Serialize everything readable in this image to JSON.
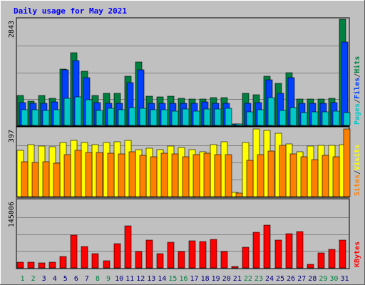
{
  "chart_data": {
    "type": "bar",
    "title": "Daily usage for May 2021",
    "categories": [
      "1",
      "2",
      "3",
      "4",
      "5",
      "6",
      "7",
      "8",
      "9",
      "10",
      "11",
      "12",
      "13",
      "14",
      "15",
      "16",
      "17",
      "18",
      "19",
      "20",
      "21",
      "22",
      "23",
      "24",
      "25",
      "26",
      "27",
      "28",
      "29",
      "30",
      "31"
    ],
    "weekend_days": [
      "1",
      "2",
      "8",
      "9",
      "15",
      "16",
      "22",
      "23",
      "29",
      "30"
    ],
    "panels": [
      {
        "id": "hits",
        "ymax": 2843,
        "ymax_label": "2843",
        "legend": [
          {
            "text": "Pages",
            "color": "#00c8c8"
          },
          {
            "text": "/",
            "color": "#444444"
          },
          {
            "text": "Files",
            "color": "#0040ff"
          },
          {
            "text": "/",
            "color": "#444444"
          },
          {
            "text": "Hits",
            "color": "#008040"
          }
        ],
        "series": [
          {
            "name": "Hits",
            "color": "#008040",
            "values": [
              795,
              646,
              795,
              717,
              1515,
              1944,
              1455,
              795,
              854,
              854,
              1309,
              1698,
              785,
              766,
              785,
              717,
              707,
              707,
              737,
              746,
              30,
              854,
              814,
              1311,
              1133,
              1418,
              697,
              697,
              697,
              727,
              2843
            ]
          },
          {
            "name": "Files",
            "color": "#0040ff",
            "values": [
              612,
              599,
              599,
              625,
              1497,
              1730,
              1274,
              612,
              597,
              599,
              1148,
              1486,
              599,
              583,
              583,
              599,
              599,
              624,
              599,
              599,
              24,
              599,
              612,
              1229,
              850,
              1273,
              599,
              583,
              583,
              612,
              2235
            ]
          },
          {
            "name": "Pages",
            "color": "#00c8c8",
            "values": [
              418,
              422,
              408,
              420,
              718,
              766,
              692,
              403,
              455,
              416,
              476,
              466,
              418,
              418,
              389,
              442,
              387,
              432,
              431,
              460,
              12,
              364,
              422,
              745,
              394,
              482,
              349,
              360,
              364,
              390,
              341
            ]
          }
        ]
      },
      {
        "id": "visits",
        "ymax": 397,
        "ymax_label": "397",
        "legend": [
          {
            "text": "Sites",
            "color": "#ff8000"
          },
          {
            "text": "/",
            "color": "#444444"
          },
          {
            "text": "Visits",
            "color": "#ffff00"
          }
        ],
        "series": [
          {
            "name": "Visits",
            "color": "#ffff00",
            "values": [
              270,
              300,
              292,
              289,
              315,
              328,
              314,
              300,
              314,
              317,
              328,
              275,
              283,
              271,
              292,
              287,
              275,
              262,
              300,
              319,
              23,
              315,
              393,
              386,
              368,
              307,
              260,
              294,
              299,
              299,
              300
            ]
          },
          {
            "name": "Sites",
            "color": "#ff8000",
            "values": [
              201,
              200,
              204,
              195,
              246,
              268,
              256,
              258,
              254,
              249,
              260,
              239,
              231,
              251,
              248,
              233,
              243,
              254,
              243,
              244,
              20,
              209,
              246,
              265,
              299,
              247,
              231,
              214,
              240,
              232,
              394
            ]
          }
        ]
      },
      {
        "id": "kbytes",
        "ymax": 145006,
        "ymax_label": "145006",
        "legend": [
          {
            "text": "KBytes",
            "color": "#ff0000"
          }
        ],
        "series": [
          {
            "name": "KBytes",
            "color": "#ff0000",
            "values": [
              12650,
              11600,
              11200,
              12100,
              24750,
              70750,
              46150,
              31100,
              15400,
              51280,
              89650,
              35850,
              60000,
              30950,
              54550,
              35250,
              58100,
              56100,
              61300,
              35600,
              800,
              43600,
              75600,
              92050,
              58800,
              73200,
              78000,
              8000,
              31850,
              40250,
              59150
            ]
          }
        ]
      }
    ]
  }
}
